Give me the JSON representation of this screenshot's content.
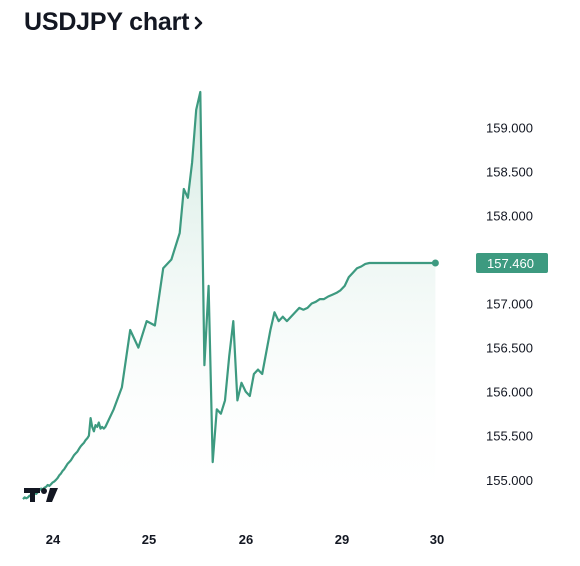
{
  "header": {
    "title": "USDJPY chart"
  },
  "icons": {
    "title_chevron": "chevron-right-icon",
    "logo": "tradingview-logo"
  },
  "colors": {
    "line": "#3d9a80",
    "fill_top": "#cfe8df",
    "price_tag": "#3d9a80"
  },
  "chart_data": {
    "type": "area",
    "title": "",
    "xlabel": "",
    "ylabel": "",
    "x_tick_labels": [
      "24",
      "25",
      "26",
      "29",
      "30"
    ],
    "y_tick_labels": [
      "155.000",
      "155.500",
      "156.000",
      "156.500",
      "157.000",
      "157.500",
      "158.000",
      "158.500",
      "159.000"
    ],
    "ylim": [
      154.8,
      159.5
    ],
    "grid": false,
    "last_price": "157.460",
    "series": [
      {
        "x": [
          0,
          0.02,
          0.04,
          0.06,
          0.08,
          0.1,
          0.12,
          0.14,
          0.16,
          0.18,
          0.2,
          0.22,
          0.24,
          0.26,
          0.28,
          0.3,
          0.32,
          0.34,
          0.36,
          0.38,
          0.4,
          0.42,
          0.44,
          0.46,
          0.48,
          0.5,
          0.52,
          0.54,
          0.56,
          0.58,
          0.6,
          0.62,
          0.64,
          0.66,
          0.68,
          0.7,
          0.72,
          0.74,
          0.76,
          0.78,
          0.8,
          0.82,
          0.84,
          0.86,
          0.88,
          0.9,
          0.92,
          0.94,
          0.96,
          0.98,
          1.0,
          1.1,
          1.2,
          1.3,
          1.4,
          1.5,
          1.6,
          1.7,
          1.8,
          1.9,
          1.95,
          2.0,
          2.05,
          2.1,
          2.15,
          2.2,
          2.25,
          2.3,
          2.35,
          2.4,
          2.45,
          2.5,
          2.55,
          2.6,
          2.65,
          2.7,
          2.75,
          2.8,
          2.85,
          2.9,
          2.95,
          3.0,
          3.05,
          3.1,
          3.15,
          3.2,
          3.25,
          3.3,
          3.35,
          3.4,
          3.45,
          3.5,
          3.55,
          3.6,
          3.65,
          3.7,
          3.75,
          3.8,
          3.85,
          3.9,
          3.95,
          4.0,
          4.05,
          4.1,
          4.15,
          4.2,
          4.25,
          4.3,
          4.35,
          4.4,
          4.45,
          4.5,
          4.55,
          4.6,
          4.65,
          4.7,
          4.75,
          4.8,
          4.85,
          4.9,
          4.95,
          5.0
        ],
        "values": [
          154.78,
          154.8,
          154.79,
          154.8,
          154.82,
          154.81,
          154.83,
          154.85,
          154.84,
          154.86,
          154.88,
          154.9,
          154.89,
          154.91,
          154.92,
          154.94,
          154.93,
          154.95,
          154.97,
          154.98,
          155.0,
          155.02,
          155.05,
          155.07,
          155.1,
          155.12,
          155.15,
          155.18,
          155.2,
          155.22,
          155.25,
          155.28,
          155.3,
          155.32,
          155.35,
          155.38,
          155.4,
          155.42,
          155.45,
          155.47,
          155.5,
          155.7,
          155.6,
          155.55,
          155.62,
          155.6,
          155.65,
          155.58,
          155.6,
          155.58,
          155.6,
          155.8,
          156.05,
          156.7,
          156.5,
          156.8,
          156.75,
          157.4,
          157.5,
          157.8,
          158.3,
          158.2,
          158.6,
          159.2,
          159.4,
          156.3,
          157.2,
          155.2,
          155.8,
          155.75,
          155.9,
          156.4,
          156.8,
          155.9,
          156.1,
          156.0,
          155.95,
          156.2,
          156.25,
          156.2,
          156.45,
          156.7,
          156.9,
          156.8,
          156.85,
          156.8,
          156.85,
          156.9,
          156.95,
          156.93,
          156.95,
          157.0,
          157.02,
          157.05,
          157.05,
          157.08,
          157.1,
          157.12,
          157.15,
          157.2,
          157.3,
          157.35,
          157.4,
          157.42,
          157.45,
          157.46,
          157.46,
          157.46,
          157.46,
          157.46,
          157.46,
          157.46,
          157.46,
          157.46,
          157.46,
          157.46,
          157.46,
          157.46,
          157.46,
          157.46,
          157.46,
          157.46
        ]
      }
    ]
  }
}
